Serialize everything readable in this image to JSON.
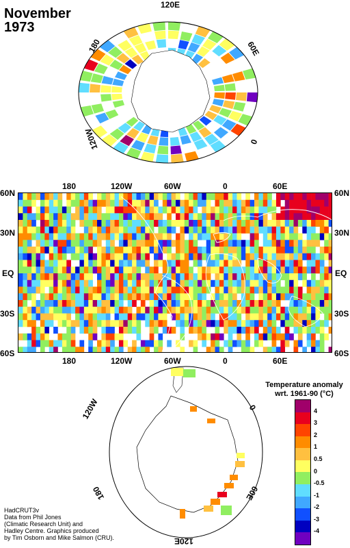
{
  "header": {
    "month": "November",
    "year": "1973"
  },
  "arctic_labels": {
    "top": "120E",
    "left": "180",
    "right": "60E",
    "bottom_left": "120W",
    "bottom_right": "0"
  },
  "main_map": {
    "top_lon_labels": [
      "180",
      "120W",
      "60W",
      "0",
      "60E"
    ],
    "bottom_lon_labels": [
      "180",
      "120W",
      "60W",
      "0",
      "60E"
    ],
    "left_lat_labels": [
      "60N",
      "30N",
      "EQ",
      "30S",
      "60S"
    ],
    "right_lat_labels": [
      "60N",
      "30N",
      "EQ",
      "30S",
      "60S"
    ]
  },
  "antarctic_labels": {
    "left": "120W",
    "right": "0",
    "bottom_left": "180",
    "bottom_right": "60E",
    "bottom": "120E"
  },
  "legend": {
    "title_line1": "Temperature anomaly",
    "title_line2": "wrt. 1961-90  (°C)",
    "ticks": [
      "4",
      "3",
      "2",
      "1",
      "0.5",
      "0",
      "-0.5",
      "-1",
      "-2",
      "-3",
      "-4"
    ],
    "colors": [
      "#a0006a",
      "#e8001e",
      "#ff4400",
      "#ff8c00",
      "#ffc040",
      "#ffff60",
      "#90ee60",
      "#60ddff",
      "#40a8ff",
      "#1050ff",
      "#0000c0",
      "#7000c0"
    ]
  },
  "credits": [
    "HadCRUT3v",
    "Data from Phil Jones",
    "(Climatic Research Unit) and",
    "Hadley Centre.  Graphics produced",
    "by Tim Osborn and Mike Salmon (CRU)."
  ]
}
